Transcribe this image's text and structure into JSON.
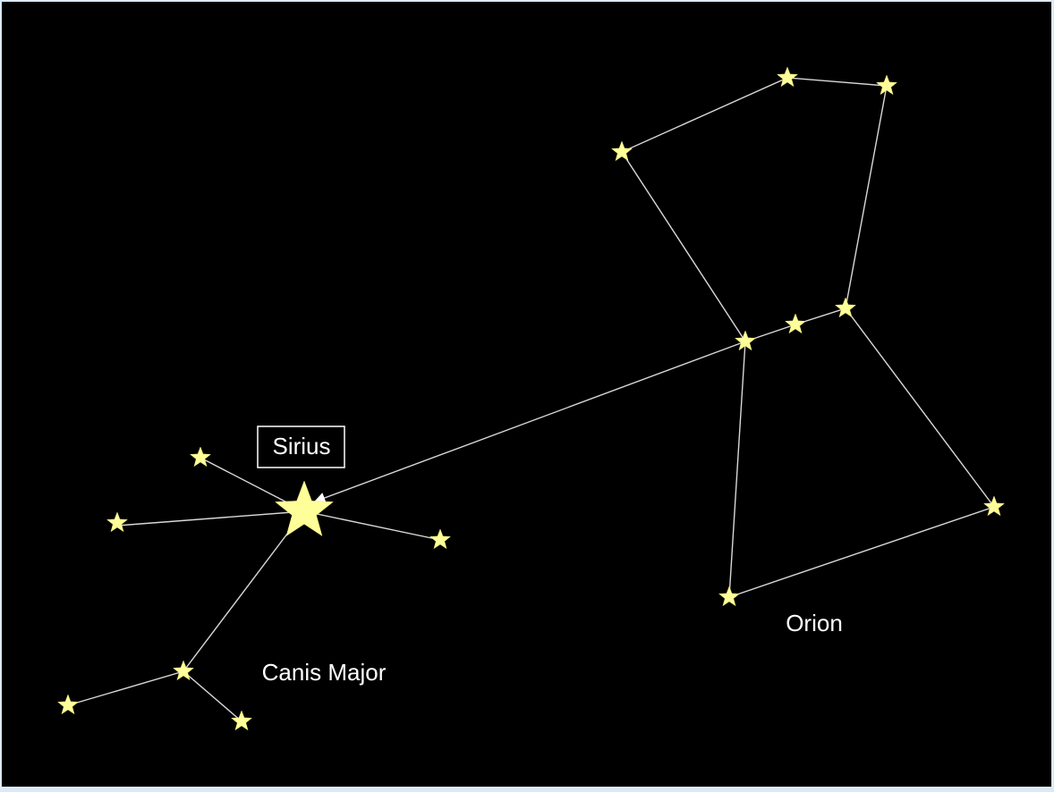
{
  "labels": {
    "sirius": "Sirius",
    "canis_major": "Canis Major",
    "orion": "Orion"
  }
}
